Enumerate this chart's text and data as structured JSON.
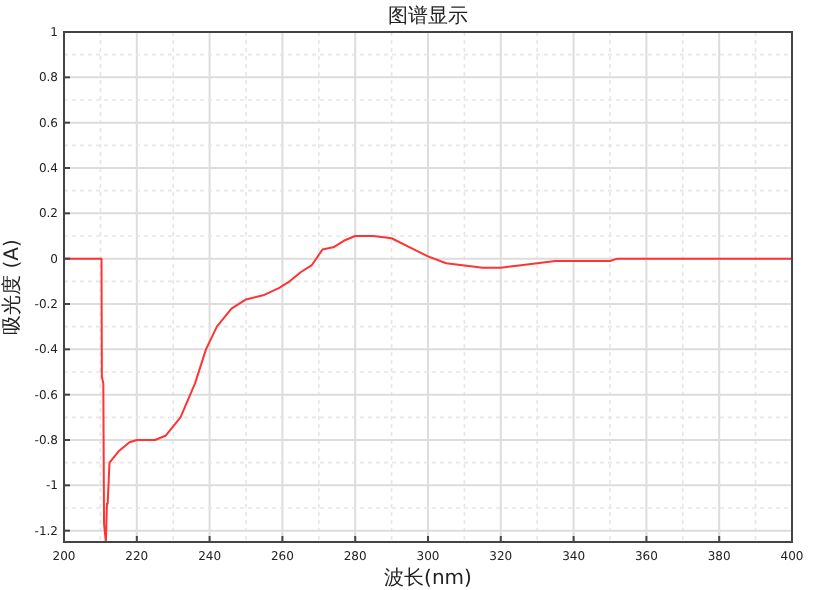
{
  "chart_data": {
    "type": "line",
    "title": "图谱显示",
    "xlabel": "波长(nm)",
    "ylabel": "吸光度 (A)",
    "xlim": [
      200,
      400
    ],
    "ylim": [
      -1.25,
      1
    ],
    "xticks": [
      200,
      220,
      240,
      260,
      280,
      300,
      320,
      340,
      360,
      380,
      400
    ],
    "yticks": [
      -1.2,
      -1,
      -0.8,
      -0.6,
      -0.4,
      -0.2,
      0,
      0.2,
      0.4,
      0.6,
      0.8,
      1
    ],
    "grid": true,
    "marker": "none",
    "line_style": "solid",
    "series": [
      {
        "color": "#ff3333",
        "x": [
          200,
          205,
          210.3,
          210.4,
          210.8,
          211,
          211.5,
          211.8,
          212,
          212.5,
          215,
          218,
          220,
          225,
          228,
          232,
          236,
          239,
          242,
          246,
          250,
          255,
          259,
          262,
          265,
          268,
          271,
          274,
          277,
          280,
          285,
          290,
          295,
          300,
          305,
          310,
          315,
          320,
          325,
          330,
          335,
          345,
          350,
          352,
          360,
          380,
          400
        ],
        "values": [
          0,
          0,
          0,
          -0.52,
          -0.55,
          -1.17,
          -1.25,
          -1.08,
          -1.08,
          -0.9,
          -0.85,
          -0.81,
          -0.8,
          -0.8,
          -0.78,
          -0.7,
          -0.55,
          -0.4,
          -0.3,
          -0.22,
          -0.18,
          -0.16,
          -0.13,
          -0.1,
          -0.06,
          -0.03,
          0.04,
          0.05,
          0.08,
          0.1,
          0.1,
          0.09,
          0.05,
          0.01,
          -0.02,
          -0.03,
          -0.04,
          -0.04,
          -0.03,
          -0.02,
          -0.01,
          -0.01,
          -0.01,
          0,
          0,
          0,
          0
        ]
      }
    ]
  }
}
